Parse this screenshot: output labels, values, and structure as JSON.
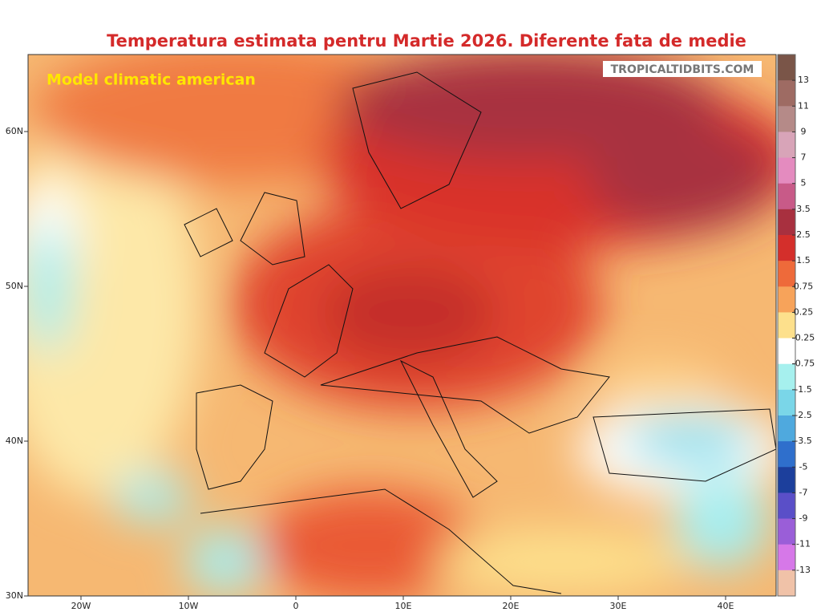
{
  "title": "Temperatura estimata pentru Martie 2026. Diferente fata de medie",
  "subtitle": "Model climatic american",
  "watermark": "TROPICALTIDBITS.COM",
  "lon_labels": [
    "20W",
    "10W",
    "0",
    "10E",
    "20E",
    "30E",
    "40E"
  ],
  "lat_labels": [
    "60N",
    "50N",
    "40N",
    "30N"
  ],
  "colorbar": {
    "labels": [
      13,
      11,
      9,
      7,
      5,
      3.5,
      2.5,
      1.5,
      0.75,
      0.25,
      -0.25,
      -0.75,
      -1.5,
      -2.5,
      -3.5,
      -5,
      -7,
      -9,
      -11,
      -13
    ],
    "colors": [
      "#7a5548",
      "#9e6b63",
      "#b58a88",
      "#d8a4b8",
      "#e48bbf",
      "#c85a88",
      "#a8303f",
      "#d42f2b",
      "#ee6a3a",
      "#f7a35a",
      "#fde08c",
      "#ffffff",
      "#a6f0ee",
      "#7ad6e8",
      "#4fa9de",
      "#2f6fcc",
      "#1c3f9c",
      "#5a4fc8",
      "#9a5ed8",
      "#d678e8",
      "#f0c2a8"
    ]
  }
}
